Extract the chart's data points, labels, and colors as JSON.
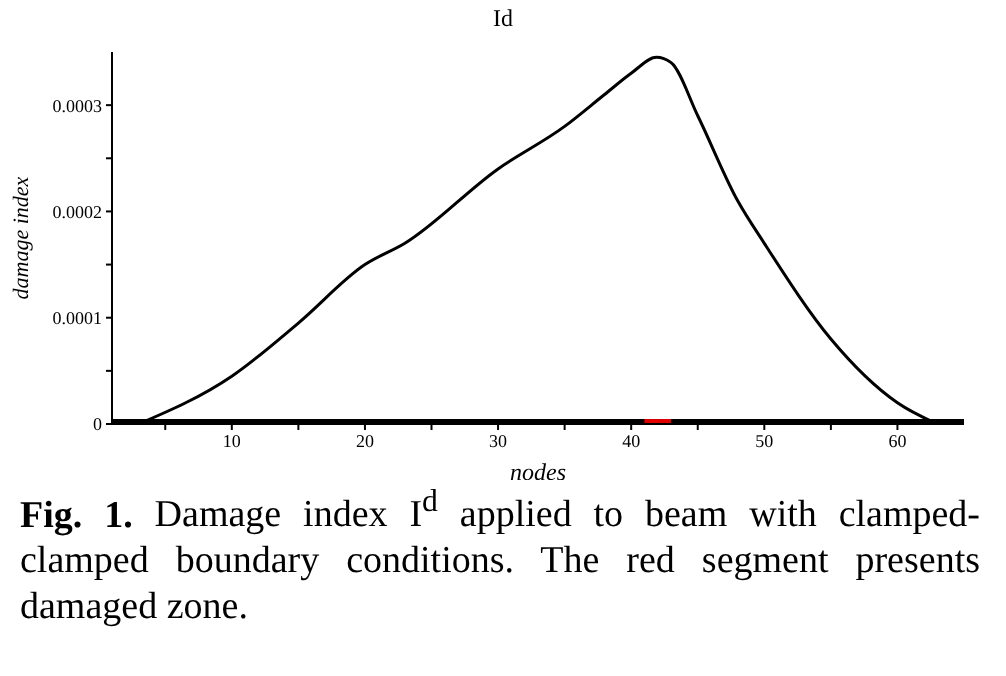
{
  "chart_data": {
    "type": "line",
    "title": "Id",
    "xlabel": "nodes",
    "ylabel": "damage index",
    "xlim": [
      1,
      65
    ],
    "xticks": [
      {
        "value": 5,
        "label": null
      },
      10,
      {
        "value": 15,
        "label": null
      },
      20,
      {
        "value": 25,
        "label": null
      },
      30,
      {
        "value": 35,
        "label": null
      },
      40,
      {
        "value": 45,
        "label": null
      },
      50,
      {
        "value": 55,
        "label": null
      },
      60
    ],
    "ylim": [
      0,
      0.00035
    ],
    "yticks": [
      0,
      {
        "value": 5e-05,
        "label": null
      },
      0.0001,
      {
        "value": 0.00015,
        "label": null
      },
      0.0002,
      {
        "value": 0.00025,
        "label": null
      },
      0.0003
    ],
    "marker": "none",
    "line_style": "solid",
    "series": [
      {
        "color": "#000000",
        "x": [
          3,
          10,
          15,
          20,
          23,
          30,
          35,
          38,
          40,
          41.9,
          43,
          45,
          48,
          50,
          55,
          60,
          63
        ],
        "values": [
          0,
          4.5e-05,
          9.5e-05,
          0.00015,
          0.00017,
          0.00024,
          0.00028,
          0.00031,
          0.00033,
          0.000345,
          0.00034,
          0.00029,
          0.00021,
          0.00017,
          8e-05,
          2e-05,
          0
        ]
      },
      {
        "color": "#000000",
        "x": [
          1,
          65
        ],
        "values": [
          0,
          0
        ]
      },
      {
        "color": "#e00000",
        "x": [
          41,
          43
        ],
        "values": [
          0,
          0
        ]
      }
    ],
    "annotations": [
      "Fig. 1. Damage index I$^{d}$ applied to beam with clamped-clamped boundary conditions. The red segment presents damaged zone."
    ]
  }
}
